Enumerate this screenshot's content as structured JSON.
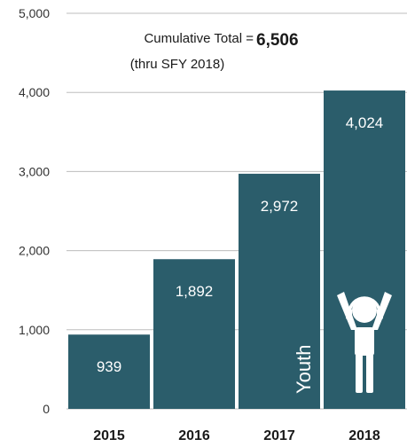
{
  "chart_data": {
    "type": "bar",
    "categories": [
      "2015",
      "2016",
      "2017",
      "2018"
    ],
    "values": [
      939,
      1892,
      2972,
      4024
    ],
    "value_labels": [
      "939",
      "1,892",
      "2,972",
      "4,024"
    ],
    "ylim": [
      0,
      5000
    ],
    "y_ticks": [
      {
        "value": 0,
        "label": "0"
      },
      {
        "value": 1000,
        "label": "1,000"
      },
      {
        "value": 2000,
        "label": "2,000"
      },
      {
        "value": 3000,
        "label": "3,000"
      },
      {
        "value": 4000,
        "label": "4,000"
      },
      {
        "value": 5000,
        "label": "5,000"
      }
    ],
    "grid": true,
    "bar_color": "#2b5d6b",
    "annotation": {
      "label": "Cumulative Total =",
      "value": "6,506",
      "sub": "(thru SFY 2018)"
    },
    "badge": {
      "text": "Youth",
      "icon": "youth-headphones-icon"
    }
  }
}
